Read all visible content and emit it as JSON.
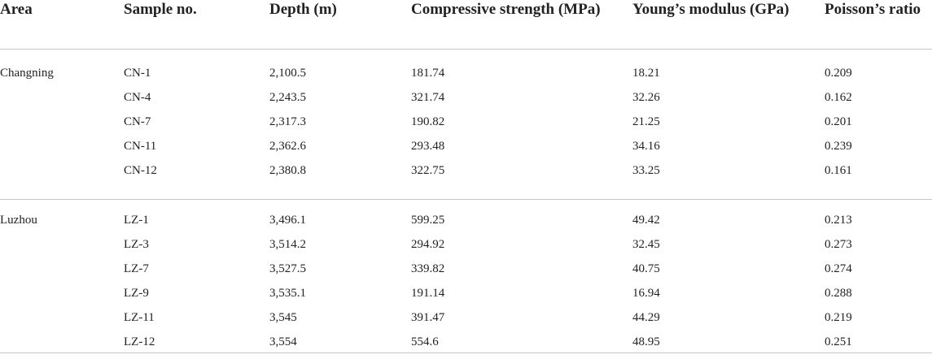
{
  "table": {
    "headers": [
      "Area",
      "Sample no.",
      "Depth (m)",
      "Compressive strength (MPa)",
      "Young’s modulus (GPa)",
      "Poisson’s ratio"
    ],
    "groups": [
      {
        "area": "Changning",
        "rows": [
          [
            "CN-1",
            "2,100.5",
            "181.74",
            "18.21",
            "0.209"
          ],
          [
            "CN-4",
            "2,243.5",
            "321.74",
            "32.26",
            "0.162"
          ],
          [
            "CN-7",
            "2,317.3",
            "190.82",
            "21.25",
            "0.201"
          ],
          [
            "CN-11",
            "2,362.6",
            "293.48",
            "34.16",
            "0.239"
          ],
          [
            "CN-12",
            "2,380.8",
            "322.75",
            "33.25",
            "0.161"
          ]
        ]
      },
      {
        "area": "Luzhou",
        "rows": [
          [
            "LZ-1",
            "3,496.1",
            "599.25",
            "49.42",
            "0.213"
          ],
          [
            "LZ-3",
            "3,514.2",
            "294.92",
            "32.45",
            "0.273"
          ],
          [
            "LZ-7",
            "3,527.5",
            "339.82",
            "40.75",
            "0.274"
          ],
          [
            "LZ-9",
            "3,535.1",
            "191.14",
            "16.94",
            "0.288"
          ],
          [
            "LZ-11",
            "3,545",
            "391.47",
            "44.29",
            "0.219"
          ],
          [
            "LZ-12",
            "3,554",
            "554.6",
            "48.95",
            "0.251"
          ]
        ]
      }
    ]
  }
}
